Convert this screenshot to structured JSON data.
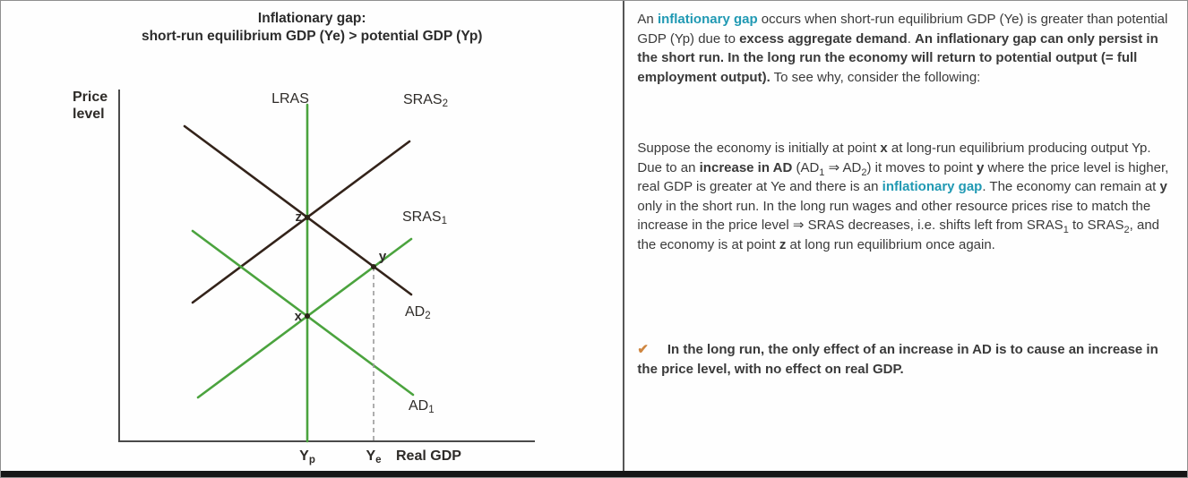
{
  "colors": {
    "teal": "#2099b3",
    "orange": "#cf8640",
    "green": "#4ba33e",
    "brown": "#33231a",
    "axis": "#4a4a4a",
    "dashed_line": "#9a9a9a",
    "body_text": "#3a3a3a"
  },
  "left_panel": {
    "title_line1": "Inflationary gap:",
    "title_line2": "short-run equilibrium GDP (Ye) > potential GDP (Yp)",
    "chart": {
      "y_axis_label_line1": "Price",
      "y_axis_label_line2": "level",
      "x_axis_label": "Real GDP",
      "curves": {
        "lras": {
          "label": "LRAS"
        },
        "sras2": {
          "base": "SRAS",
          "sub": "2"
        },
        "sras1": {
          "base": "SRAS",
          "sub": "1"
        },
        "ad2": {
          "base": "AD",
          "sub": "2"
        },
        "ad1": {
          "base": "AD",
          "sub": "1"
        }
      },
      "points": {
        "x": "x",
        "y": "y",
        "z": "z"
      },
      "ticks": {
        "yp_base": "Y",
        "yp_sub": "p",
        "ye_base": "Y",
        "ye_sub": "e"
      }
    }
  },
  "right_panel": {
    "para1": [
      {
        "t": "An "
      },
      {
        "t": "inflationary gap",
        "c": "teal",
        "b": true
      },
      {
        "t": " occurs when short-run equilibrium GDP (Ye) is greater than potential GDP (Yp) due to "
      },
      {
        "t": "excess aggregate demand",
        "b": true
      },
      {
        "t": ". "
      },
      {
        "t": "An inflationary gap can only persist in the short run. In the long run the economy will return to potential output (= full employment output).",
        "b": true
      },
      {
        "t": " To see why, consider the following:"
      }
    ],
    "para2": [
      {
        "t": "Suppose the economy is initially at point "
      },
      {
        "t": "x",
        "b": true
      },
      {
        "t": " at long-run equilibrium producing output Yp. Due to an "
      },
      {
        "t": "increase in AD",
        "b": true
      },
      {
        "t": " (AD"
      },
      {
        "t": "1",
        "sub": true
      },
      {
        "t": " ⇒ AD"
      },
      {
        "t": "2",
        "sub": true
      },
      {
        "t": ") it moves to point "
      },
      {
        "t": "y",
        "b": true
      },
      {
        "t": " where the price level is higher, real GDP is greater at Ye and there is an "
      },
      {
        "t": "inflationary gap",
        "c": "teal",
        "b": true
      },
      {
        "t": ". The economy can remain at "
      },
      {
        "t": "y",
        "b": true
      },
      {
        "t": " only in the short run. In the long run wages and other resource prices rise to match the increase in the price level ⇒ SRAS decreases, i.e. shifts left from SRAS"
      },
      {
        "t": "1",
        "sub": true
      },
      {
        "t": " to SRAS"
      },
      {
        "t": "2",
        "sub": true
      },
      {
        "t": ", and the economy is at point "
      },
      {
        "t": "z",
        "b": true
      },
      {
        "t": " at long run equilibrium once again."
      }
    ],
    "para3": [
      {
        "t": "✔",
        "c": "orange",
        "b": true
      },
      {
        "t": "     ",
        "b": true
      },
      {
        "t": "In the long run, the only effect of an increase in AD is to cause an increase in the price level, with no effect on real GDP.",
        "b": true
      }
    ]
  }
}
